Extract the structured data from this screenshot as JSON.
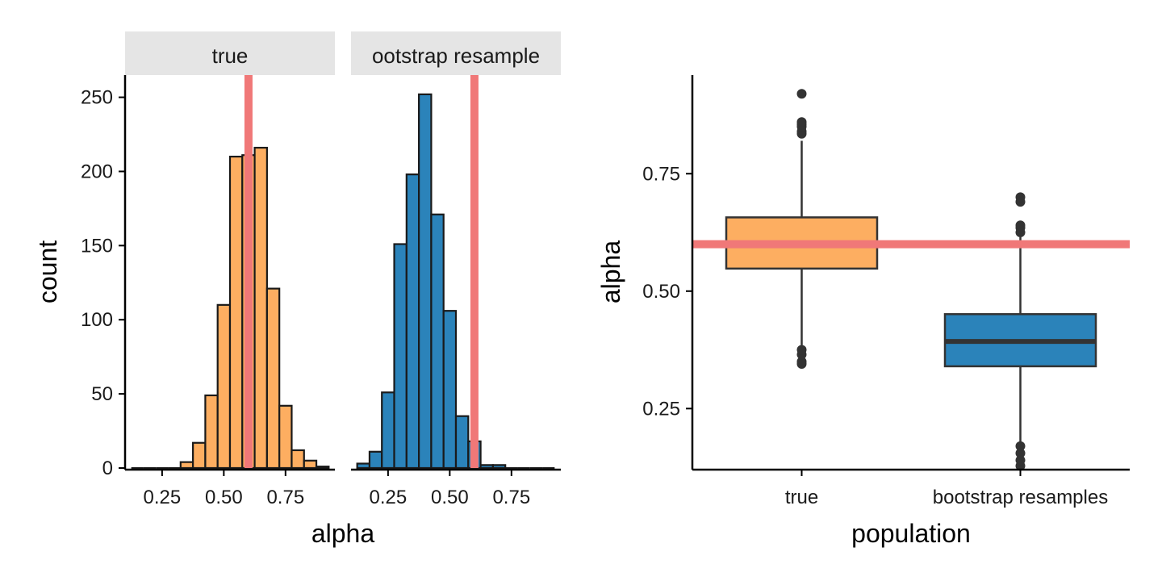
{
  "colors": {
    "true_fill": "#FDAE61",
    "boot_fill": "#2B83BA",
    "ref_line": "#F07878",
    "strip_bg": "#E5E5E5",
    "outline": "#1a1a1a",
    "box_line": "#333333"
  },
  "chart_data": [
    {
      "type": "bar",
      "subtype": "histogram-facets",
      "xlabel": "alpha",
      "ylabel": "count",
      "xlim": [
        0.1,
        0.95
      ],
      "ylim": [
        0,
        265
      ],
      "x_ticks": [
        "0.25",
        "0.50",
        "0.75"
      ],
      "x_tick_values": [
        0.25,
        0.5,
        0.75
      ],
      "y_ticks": [
        "0",
        "50",
        "100",
        "150",
        "200",
        "250"
      ],
      "y_tick_values": [
        0,
        50,
        100,
        150,
        200,
        250
      ],
      "bin_width": 0.05,
      "reference_line_x": 0.6,
      "facets": [
        {
          "label": "true",
          "color": "#FDAE61",
          "bins": [
            {
              "start": 0.125,
              "count": 0
            },
            {
              "start": 0.175,
              "count": 0
            },
            {
              "start": 0.225,
              "count": 0
            },
            {
              "start": 0.275,
              "count": 0
            },
            {
              "start": 0.325,
              "count": 4
            },
            {
              "start": 0.375,
              "count": 17
            },
            {
              "start": 0.425,
              "count": 49
            },
            {
              "start": 0.475,
              "count": 110
            },
            {
              "start": 0.525,
              "count": 210
            },
            {
              "start": 0.575,
              "count": 211
            },
            {
              "start": 0.625,
              "count": 216
            },
            {
              "start": 0.675,
              "count": 121
            },
            {
              "start": 0.725,
              "count": 42
            },
            {
              "start": 0.775,
              "count": 12
            },
            {
              "start": 0.825,
              "count": 5
            },
            {
              "start": 0.875,
              "count": 1
            }
          ]
        },
        {
          "label": "ootstrap resample",
          "color": "#2B83BA",
          "bins": [
            {
              "start": 0.125,
              "count": 3
            },
            {
              "start": 0.175,
              "count": 11
            },
            {
              "start": 0.225,
              "count": 51
            },
            {
              "start": 0.275,
              "count": 151
            },
            {
              "start": 0.325,
              "count": 198
            },
            {
              "start": 0.375,
              "count": 252
            },
            {
              "start": 0.425,
              "count": 171
            },
            {
              "start": 0.475,
              "count": 106
            },
            {
              "start": 0.525,
              "count": 35
            },
            {
              "start": 0.575,
              "count": 18
            },
            {
              "start": 0.625,
              "count": 2
            },
            {
              "start": 0.675,
              "count": 2
            },
            {
              "start": 0.725,
              "count": 0
            },
            {
              "start": 0.775,
              "count": 0
            },
            {
              "start": 0.825,
              "count": 0
            },
            {
              "start": 0.875,
              "count": 0
            }
          ]
        }
      ]
    },
    {
      "type": "box",
      "xlabel": "population",
      "ylabel": "alpha",
      "ylim": [
        0.12,
        0.96
      ],
      "y_ticks": [
        "0.25",
        "0.50",
        "0.75"
      ],
      "y_tick_values": [
        0.25,
        0.5,
        0.75
      ],
      "reference_line_y": 0.6,
      "categories": [
        "true",
        "bootstrap resamples"
      ],
      "boxes": [
        {
          "category": "true",
          "color": "#FDAE61",
          "q1": 0.548,
          "median": 0.6,
          "q3": 0.657,
          "whisker_low": 0.385,
          "whisker_high": 0.82,
          "outliers": [
            0.345,
            0.35,
            0.365,
            0.375,
            0.835,
            0.84,
            0.85,
            0.855,
            0.86,
            0.92
          ]
        },
        {
          "category": "bootstrap resamples",
          "color": "#2B83BA",
          "q1": 0.34,
          "median": 0.393,
          "q3": 0.451,
          "whisker_low": 0.18,
          "whisker_high": 0.615,
          "outliers": [
            0.128,
            0.14,
            0.155,
            0.17,
            0.625,
            0.635,
            0.64,
            0.69,
            0.7
          ]
        }
      ]
    }
  ]
}
